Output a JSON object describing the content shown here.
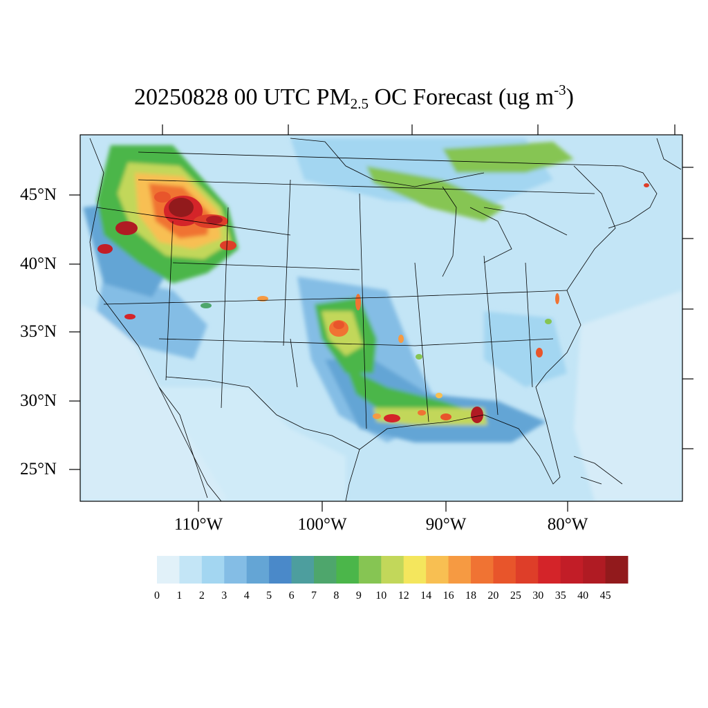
{
  "title": {
    "main": "20250828 00 UTC PM",
    "sub": "2.5",
    "mid": " OC Forecast (ug m",
    "sup": "-3",
    "end": ")"
  },
  "lat_labels": [
    "45°N",
    "40°N",
    "35°N",
    "30°N",
    "25°N"
  ],
  "lon_labels": [
    "110°W",
    "100°W",
    "90°W",
    "80°W"
  ],
  "colorbar": {
    "levels": [
      "0",
      "1",
      "2",
      "3",
      "4",
      "5",
      "6",
      "7",
      "8",
      "9",
      "10",
      "12",
      "14",
      "16",
      "18",
      "20",
      "25",
      "30",
      "35",
      "40",
      "45"
    ],
    "colors": [
      "#e1f1f9",
      "#c3e5f6",
      "#a3d6f1",
      "#84bde5",
      "#64a5d5",
      "#4a89c9",
      "#4d9e9e",
      "#4ea66c",
      "#4bb64a",
      "#86c553",
      "#c2d75a",
      "#f4e65d",
      "#f8bf52",
      "#f69a42",
      "#f07333",
      "#e8552b",
      "#de3e29",
      "#d42429",
      "#c21d27",
      "#b01b23",
      "#921a1c"
    ]
  },
  "map": {
    "variable": "PM2.5 OC",
    "units": "ug m-3",
    "region": "CONUS"
  }
}
